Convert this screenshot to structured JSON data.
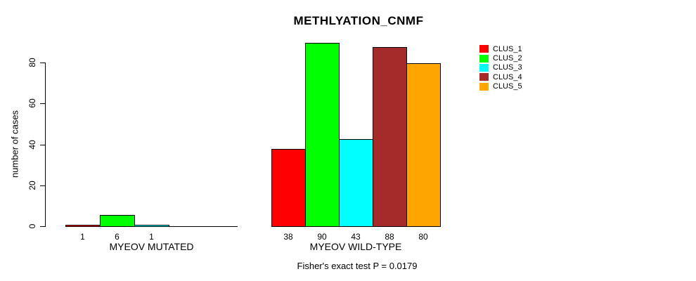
{
  "chart_data": {
    "type": "bar",
    "title": "METHLYATION_CNMF",
    "ylabel": "number of cases",
    "caption": "Fisher's exact test P = 0.0179",
    "yticks": [
      0,
      20,
      40,
      60,
      80
    ],
    "ylim": [
      0,
      90
    ],
    "grid": false,
    "legend_position": "right",
    "categories": [
      "MYEOV MUTATED",
      "MYEOV WILD-TYPE"
    ],
    "series": [
      {
        "name": "CLUS_1",
        "color": "#ff0000",
        "values": [
          1,
          38
        ]
      },
      {
        "name": "CLUS_2",
        "color": "#00ff00",
        "values": [
          6,
          90
        ]
      },
      {
        "name": "CLUS_3",
        "color": "#00ffff",
        "values": [
          1,
          43
        ]
      },
      {
        "name": "CLUS_4",
        "color": "#a52a2a",
        "values": [
          0,
          88
        ]
      },
      {
        "name": "CLUS_5",
        "color": "#ffa500",
        "values": [
          0,
          80
        ]
      }
    ],
    "bar_labels": [
      [
        "1",
        "6",
        "1",
        "",
        ""
      ],
      [
        "38",
        "90",
        "43",
        "88",
        "80"
      ]
    ],
    "colors": {
      "axis": "#000000",
      "text": "#000000",
      "background": "#ffffff"
    }
  }
}
